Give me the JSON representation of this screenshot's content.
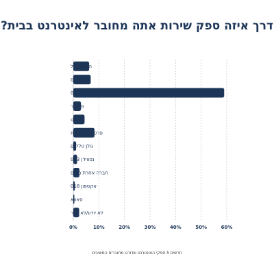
{
  "chart_data": {
    "type": "bar",
    "orientation": "horizontal",
    "title": "דרך איזה ספק שירות אתה מחובר לאינטרנט בבית?",
    "caption": "תרשים 5 ספקי האינטרנט שדורגו מחוברים המשיבים",
    "categories": [
      "הוט מובייל",
      "סלקום",
      "בזק בינלאומי 014",
      "פרטנר",
      "הוט נט",
      "פרטנר תקשורת",
      "גולן טלקום",
      "נטוויז'ן 013",
      "חברה אחרת מינים",
      "אקספון 018",
      "סאווא",
      "לא יודע/לא זוכר"
    ],
    "values": [
      6.2,
      6.8,
      59.0,
      3.0,
      4.4,
      8.3,
      1.1,
      1.5,
      2.4,
      0.6,
      0.4,
      2.3
    ],
    "xlabel": "",
    "ylabel": "",
    "xlim": [
      0,
      60
    ],
    "xticks": [
      "0%",
      "10%",
      "20%",
      "30%",
      "40%",
      "50%",
      "60%"
    ],
    "xtick_values": [
      0,
      10,
      20,
      30,
      40,
      50,
      60
    ],
    "grid": true,
    "bar_color": "#1d3557",
    "grid_color": "#b8bcc4"
  }
}
